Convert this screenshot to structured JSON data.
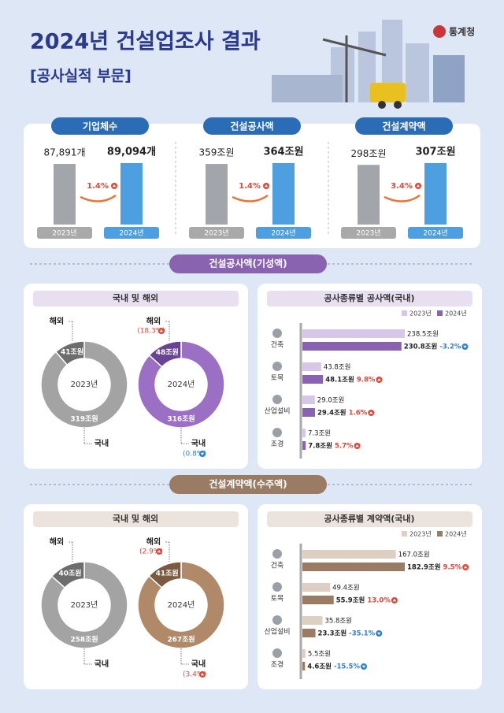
{
  "header": {
    "title": "2024년 건설업조사 결과",
    "subtitle": "[공사실적 부문]",
    "logo": "통계청"
  },
  "summary": {
    "items": [
      {
        "title": "기업체수",
        "years": [
          "2023년",
          "2024년"
        ],
        "values": [
          87891,
          89094
        ],
        "value_labels": [
          "87,891개",
          "89,094개"
        ],
        "change": "1.4%"
      },
      {
        "title": "건설공사액",
        "years": [
          "2023년",
          "2024년"
        ],
        "values": [
          359,
          364
        ],
        "value_labels": [
          "359조원",
          "364조원"
        ],
        "change": "1.4%"
      },
      {
        "title": "건설계약액",
        "years": [
          "2023년",
          "2024년"
        ],
        "values": [
          298,
          307
        ],
        "value_labels": [
          "298조원",
          "307조원"
        ],
        "change": "3.4%"
      }
    ]
  },
  "sections": [
    {
      "title": "건설공사액(기성액)",
      "color": "#8a63b0",
      "panel_color": "#e8e0f0",
      "donut": {
        "title": "국내 및 해외",
        "charts": [
          {
            "center": "2023년",
            "colors": [
              "#a3a3a3",
              "#6d6d6d"
            ],
            "labels": [
              "국내",
              "해외"
            ],
            "values": [
              319,
              41
            ],
            "value_labels": [
              "319조원",
              "41조원"
            ]
          },
          {
            "center": "2024년",
            "colors": [
              "#9b6fc4",
              "#6a4494"
            ],
            "labels": [
              "국내",
              "해외"
            ],
            "values": [
              316,
              48
            ],
            "value_labels": [
              "316조원",
              "48조원"
            ],
            "changes": [
              "(0.8%)",
              "(18.3%)"
            ],
            "change_up": [
              false,
              true
            ]
          }
        ]
      },
      "bars": {
        "title": "공사종류별 공사액(국내)",
        "categories": [
          "건축",
          "토목",
          "산업설비",
          "조경"
        ],
        "series": [
          {
            "name": "2023년",
            "color": "#d6c6e8",
            "values": [
              238.5,
              43.8,
              29.0,
              7.3
            ],
            "value_labels": [
              "238.5조원",
              "43.8조원",
              "29.0조원",
              "7.3조원"
            ]
          },
          {
            "name": "2024년",
            "color": "#8a63b0",
            "values": [
              230.8,
              48.1,
              29.4,
              7.8
            ],
            "value_labels": [
              "230.8조원",
              "48.1조원",
              "29.4조원",
              "7.8조원"
            ]
          }
        ],
        "changes": [
          "-3.2%",
          "9.8%",
          "1.6%",
          "5.7%"
        ],
        "change_up": [
          false,
          true,
          true,
          true
        ]
      }
    },
    {
      "title": "건설계약액(수주액)",
      "color": "#9a7b63",
      "panel_color": "#ece4dc",
      "donut": {
        "title": "국내 및 해외",
        "charts": [
          {
            "center": "2023년",
            "colors": [
              "#a3a3a3",
              "#6d6d6d"
            ],
            "labels": [
              "국내",
              "해외"
            ],
            "values": [
              258,
              40
            ],
            "value_labels": [
              "258조원",
              "40조원"
            ]
          },
          {
            "center": "2024년",
            "colors": [
              "#b08a68",
              "#7a5a40"
            ],
            "labels": [
              "국내",
              "해외"
            ],
            "values": [
              267,
              41
            ],
            "value_labels": [
              "267조원",
              "41조원"
            ],
            "changes": [
              "(3.4%)",
              "(2.9%)"
            ],
            "change_up": [
              true,
              true
            ]
          }
        ]
      },
      "bars": {
        "title": "공사종류별 계약액(국내)",
        "categories": [
          "건축",
          "토목",
          "산업설비",
          "조경"
        ],
        "series": [
          {
            "name": "2023년",
            "color": "#ddd0c2",
            "values": [
              167.0,
              49.4,
              35.8,
              5.5
            ],
            "value_labels": [
              "167.0조원",
              "49.4조원",
              "35.8조원",
              "5.5조원"
            ]
          },
          {
            "name": "2024년",
            "color": "#9a7b63",
            "values": [
              182.9,
              55.9,
              23.3,
              4.6
            ],
            "value_labels": [
              "182.9조원",
              "55.9조원",
              "23.3조원",
              "4.6조원"
            ]
          }
        ],
        "changes": [
          "9.5%",
          "13.0%",
          "-35.1%",
          "-15.5%"
        ],
        "change_up": [
          true,
          true,
          false,
          false
        ]
      }
    }
  ]
}
